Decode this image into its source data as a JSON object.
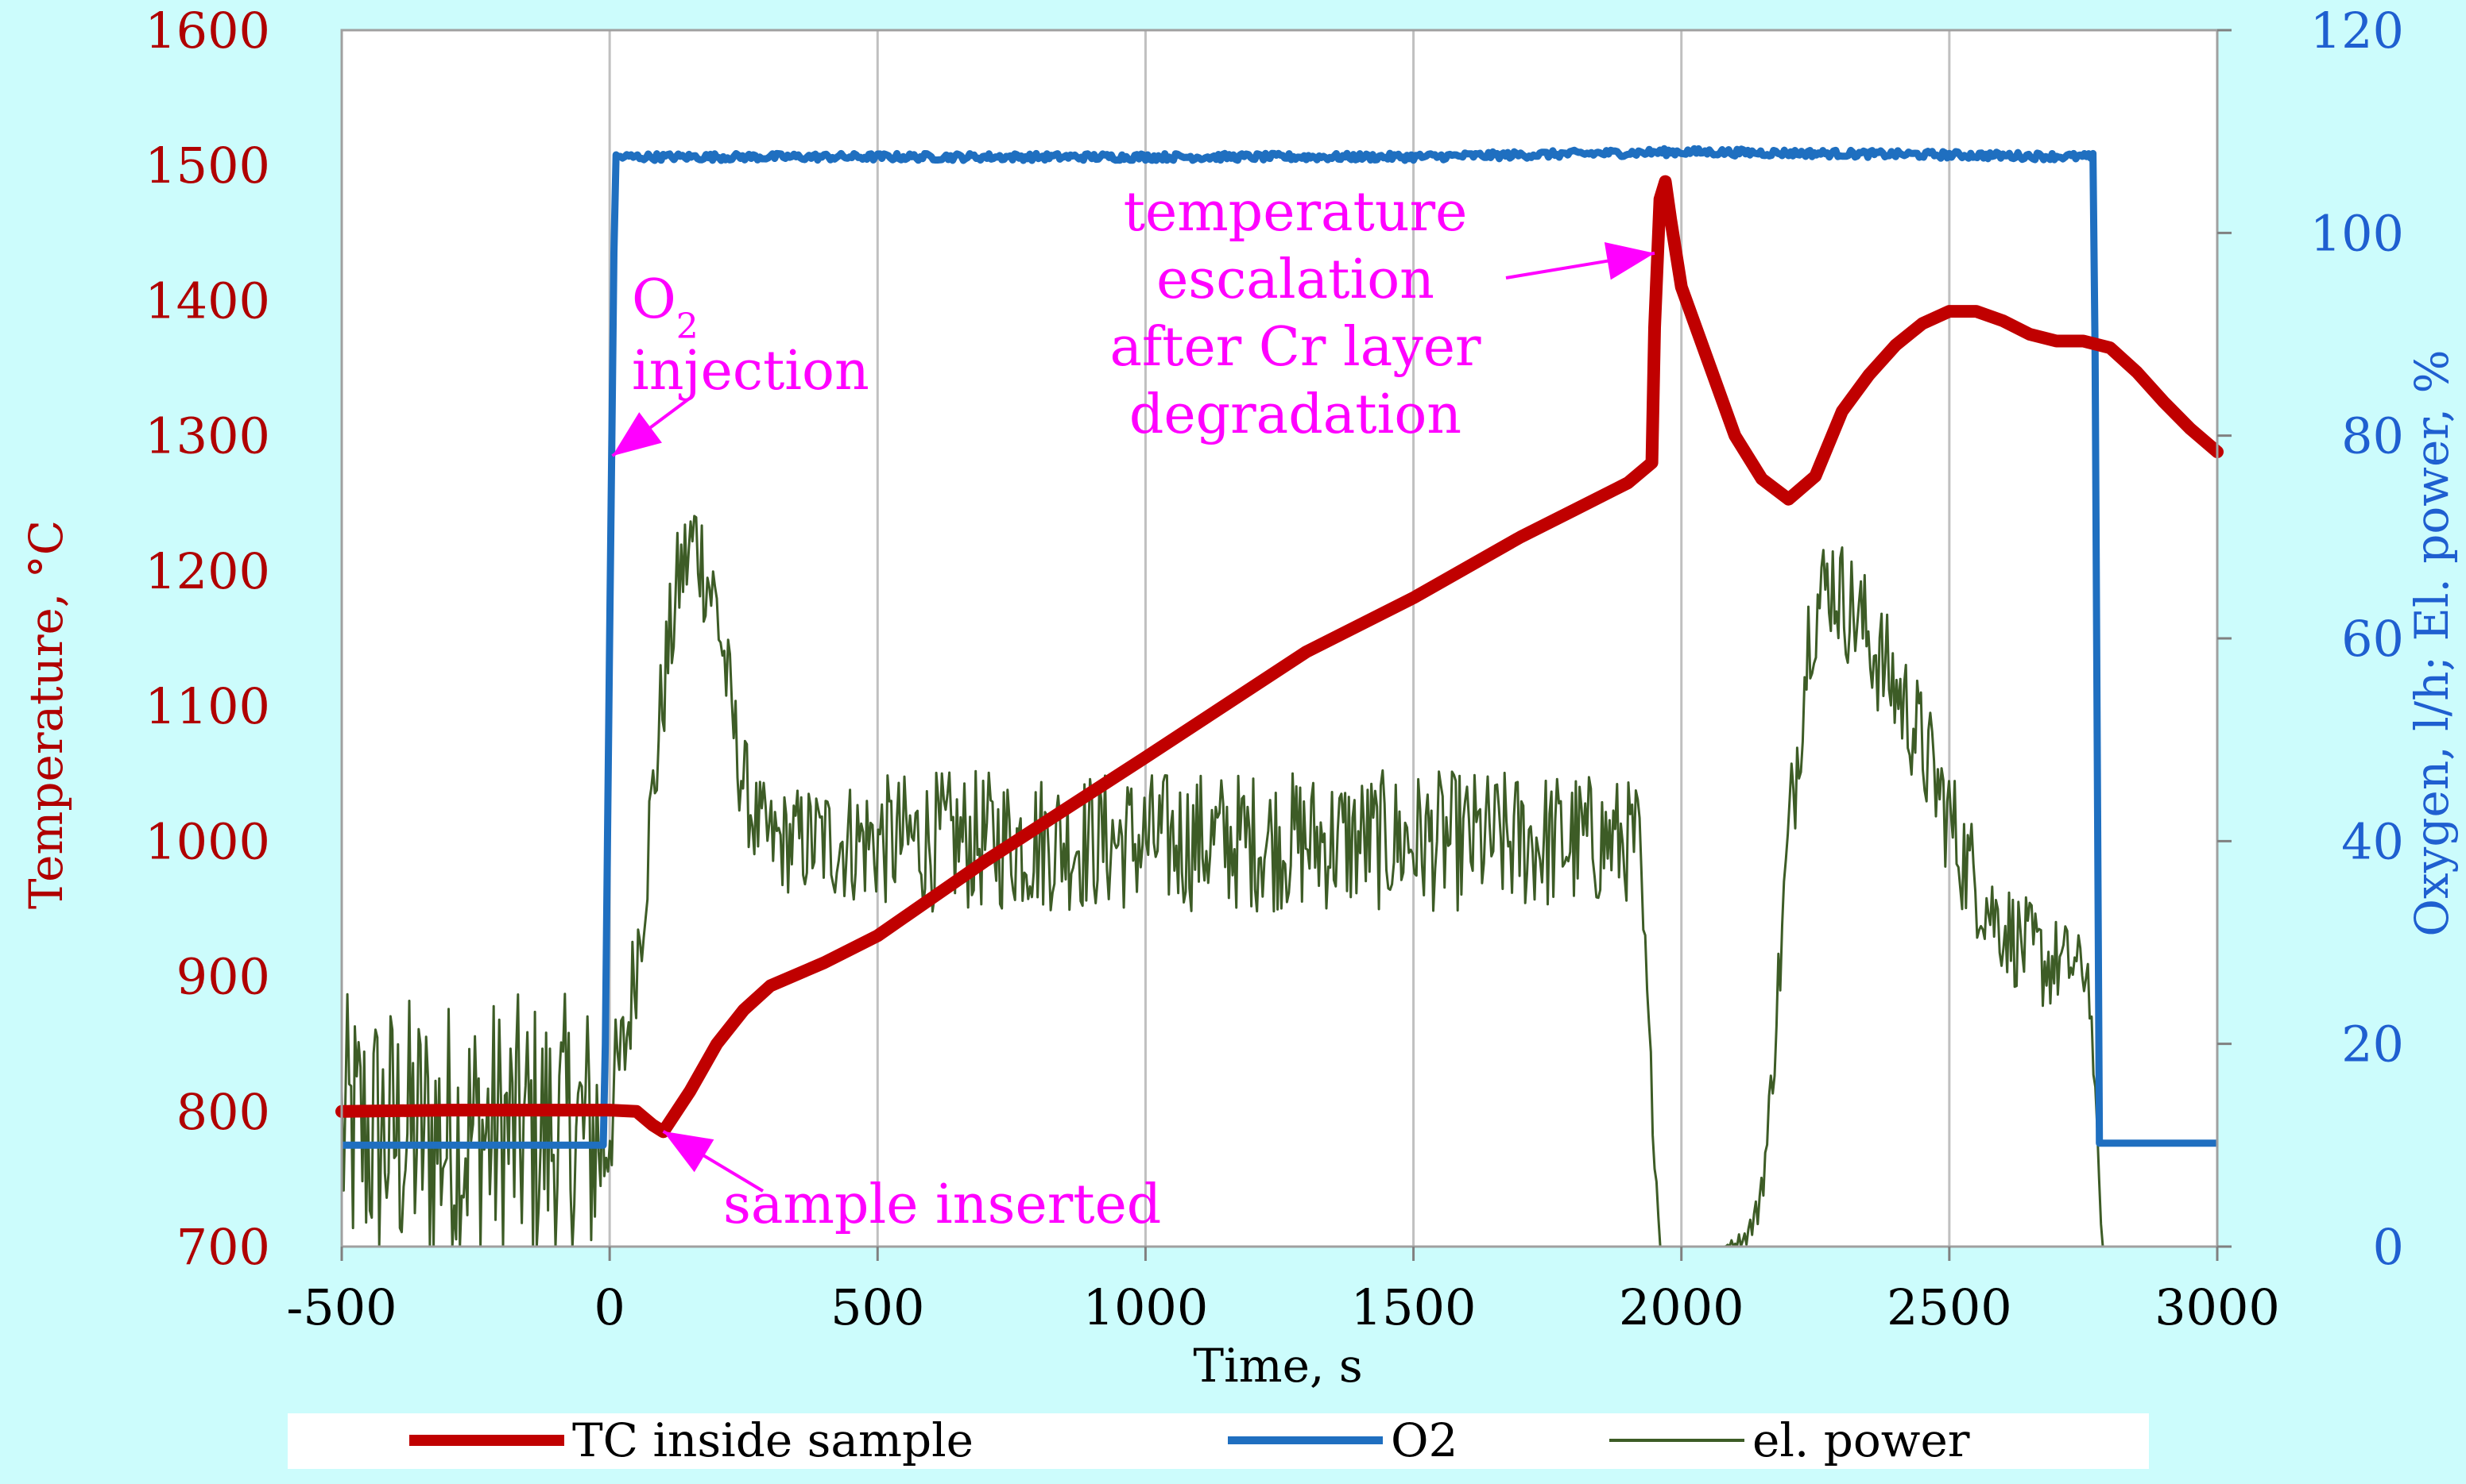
{
  "chart_data": {
    "type": "line",
    "xlabel": "Time, s",
    "ylabel_left": "Temperature, °C",
    "ylabel_right": "Oxygen, l/h; El. power, %",
    "xlim": [
      -500,
      3000
    ],
    "ylim_left": [
      700,
      1600
    ],
    "ylim_right": [
      0,
      120
    ],
    "x_ticks": [
      "-500",
      "0",
      "500",
      "1000",
      "1500",
      "2000",
      "2500",
      "3000"
    ],
    "y_left_ticks": [
      "700",
      "800",
      "900",
      "1000",
      "1100",
      "1200",
      "1300",
      "1400",
      "1500",
      "1600"
    ],
    "y_right_ticks": [
      "0",
      "20",
      "40",
      "60",
      "80",
      "100",
      "120"
    ],
    "grid": "vertical",
    "legend_position": "bottom",
    "series": [
      {
        "name": "TC inside sample",
        "axis": "left",
        "color": "#c00000",
        "x": [
          -500,
          -300,
          -100,
          0,
          50,
          80,
          100,
          150,
          200,
          250,
          300,
          400,
          500,
          700,
          1000,
          1300,
          1500,
          1700,
          1800,
          1900,
          1945,
          1950,
          1960,
          1970,
          1980,
          2000,
          2050,
          2100,
          2150,
          2200,
          2250,
          2300,
          2350,
          2400,
          2450,
          2500,
          2550,
          2600,
          2650,
          2700,
          2750,
          2800,
          2850,
          2900,
          2950,
          3000
        ],
        "y": [
          800,
          801,
          801,
          801,
          800,
          790,
          785,
          815,
          850,
          875,
          893,
          910,
          930,
          985,
          1062,
          1140,
          1180,
          1225,
          1245,
          1265,
          1280,
          1380,
          1475,
          1488,
          1460,
          1410,
          1355,
          1300,
          1268,
          1253,
          1270,
          1318,
          1345,
          1367,
          1383,
          1392,
          1392,
          1385,
          1375,
          1370,
          1370,
          1365,
          1347,
          1325,
          1305,
          1288
        ]
      },
      {
        "name": "O2",
        "axis": "right",
        "color": "#1f6fc0",
        "x": [
          -500,
          -10,
          0,
          10,
          500,
          1000,
          1500,
          2000,
          2500,
          2770,
          2780,
          2790,
          3000
        ],
        "y": [
          10,
          10,
          60,
          107.5,
          107.5,
          107.5,
          107.5,
          108,
          107.7,
          107.5,
          10.2,
          10.2,
          10.2
        ]
      },
      {
        "name": "el. power",
        "axis": "right",
        "color": "#3d5c26",
        "style": "noisy",
        "x": [
          -500,
          -10,
          0,
          30,
          60,
          100,
          130,
          160,
          200,
          240,
          270,
          300,
          400,
          600,
          800,
          1000,
          1200,
          1400,
          1600,
          1800,
          1920,
          1940,
          1955,
          1960,
          2000,
          2040,
          2080,
          2120,
          2140,
          2160,
          2200,
          2240,
          2280,
          2300,
          2330,
          2380,
          2430,
          2480,
          2530,
          2580,
          2630,
          2680,
          2720,
          2760,
          2775,
          2785,
          3000
        ],
        "y": [
          11,
          11,
          13,
          20,
          33,
          55,
          66,
          70,
          63,
          48,
          42,
          40,
          40,
          40,
          40,
          40,
          40,
          40,
          40,
          40,
          40,
          20,
          5,
          0,
          0,
          0,
          0,
          1,
          3,
          10,
          40,
          62,
          66,
          64,
          62,
          57,
          52,
          45,
          38,
          33,
          30,
          28,
          28,
          27,
          12,
          0,
          0
        ],
        "noise_amp": [
          14,
          14,
          8,
          6,
          6,
          6,
          6,
          6,
          6,
          5,
          5,
          5,
          6,
          7,
          7,
          7,
          7,
          7,
          7,
          7,
          6,
          3,
          2,
          0,
          0,
          0,
          0,
          1,
          2,
          3,
          6,
          6,
          6,
          6,
          6,
          6,
          6,
          6,
          6,
          5,
          5,
          5,
          4,
          3,
          1,
          0,
          0
        ]
      }
    ],
    "annotations": [
      {
        "lines": [
          "O",
          "injection"
        ],
        "subscript": "2",
        "color": "#ff00ff",
        "arrow_to": [
          5,
          1285
        ]
      },
      {
        "lines": [
          "temperature",
          "escalation",
          "after Cr layer",
          "degradation"
        ],
        "color": "#ff00ff",
        "arrow_to": [
          1950,
          1435
        ]
      },
      {
        "lines": [
          "sample inserted"
        ],
        "color": "#ff00ff",
        "arrow_to": [
          100,
          790
        ]
      }
    ]
  }
}
